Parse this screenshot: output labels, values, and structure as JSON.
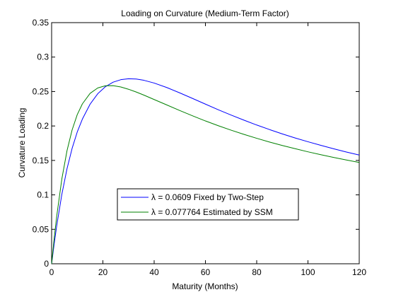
{
  "chart_data": {
    "type": "line",
    "title": "Loading on Curvature (Medium-Term Factor)",
    "xlabel": "Maturity (Months)",
    "ylabel": "Curvature Loading",
    "xlim": [
      0,
      120
    ],
    "ylim": [
      0,
      0.35
    ],
    "xticks": [
      0,
      20,
      40,
      60,
      80,
      100,
      120
    ],
    "yticks": [
      0,
      0.05,
      0.1,
      0.15,
      0.2,
      0.25,
      0.3,
      0.35
    ],
    "xtick_labels": [
      "0",
      "20",
      "40",
      "60",
      "80",
      "100",
      "120"
    ],
    "ytick_labels": [
      "0",
      "0.05",
      "0.1",
      "0.15",
      "0.2",
      "0.25",
      "0.3",
      "0.35"
    ],
    "grid": false,
    "legend_position": "lower-center",
    "series": [
      {
        "name": "λ = 0.0609 Fixed by Two-Step",
        "color": "#0000ff",
        "x": [
          0,
          1,
          2,
          4,
          6,
          8,
          10,
          12,
          15,
          18,
          21,
          24,
          27,
          30,
          33,
          36,
          40,
          45,
          50,
          55,
          60,
          65,
          70,
          75,
          80,
          85,
          90,
          95,
          100,
          105,
          110,
          115,
          120
        ],
        "values": [
          0,
          0.0291,
          0.0555,
          0.101,
          0.1379,
          0.1676,
          0.1913,
          0.21,
          0.2316,
          0.2468,
          0.2571,
          0.2636,
          0.2672,
          0.2685,
          0.2681,
          0.2663,
          0.2623,
          0.2557,
          0.248,
          0.2399,
          0.2317,
          0.2236,
          0.2159,
          0.2085,
          0.2014,
          0.1948,
          0.1885,
          0.1826,
          0.1771,
          0.1719,
          0.1669,
          0.1622,
          0.1578
        ]
      },
      {
        "name": "λ = 0.077764 Estimated by SSM",
        "color": "#008000",
        "x": [
          0,
          1,
          2,
          4,
          6,
          8,
          10,
          12,
          15,
          18,
          21,
          24,
          27,
          30,
          33,
          36,
          40,
          45,
          50,
          55,
          60,
          65,
          70,
          75,
          80,
          85,
          90,
          95,
          100,
          105,
          110,
          115,
          120
        ],
        "values": [
          0,
          0.0369,
          0.0695,
          0.1234,
          0.1641,
          0.1944,
          0.2165,
          0.2321,
          0.2473,
          0.2552,
          0.2584,
          0.2585,
          0.2566,
          0.2533,
          0.2493,
          0.2448,
          0.2384,
          0.2304,
          0.2224,
          0.2147,
          0.2073,
          0.2004,
          0.1939,
          0.1878,
          0.1821,
          0.1767,
          0.1717,
          0.167,
          0.1625,
          0.1583,
          0.1543,
          0.1506,
          0.147
        ]
      }
    ]
  }
}
